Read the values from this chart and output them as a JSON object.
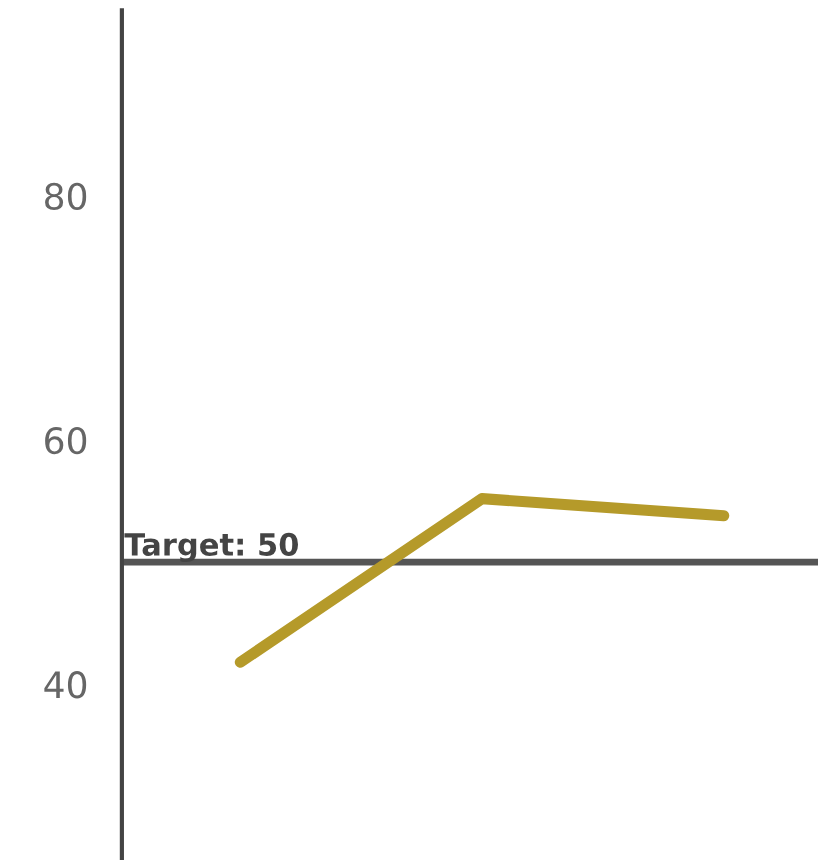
{
  "chart_data": {
    "type": "line",
    "categories": [
      null,
      null,
      null
    ],
    "series": [
      {
        "color": "#b59a2a",
        "values": [
          41.8,
          55.2,
          53.8
        ]
      }
    ],
    "ylim": [
      25.6,
      95.2
    ],
    "yticks": [
      40,
      60,
      80
    ],
    "grid": false,
    "legend": false,
    "marker": "none",
    "ref_lines": [
      {
        "axis": "y",
        "value": 50,
        "label": "Target: 50",
        "color": "#555555"
      }
    ]
  }
}
